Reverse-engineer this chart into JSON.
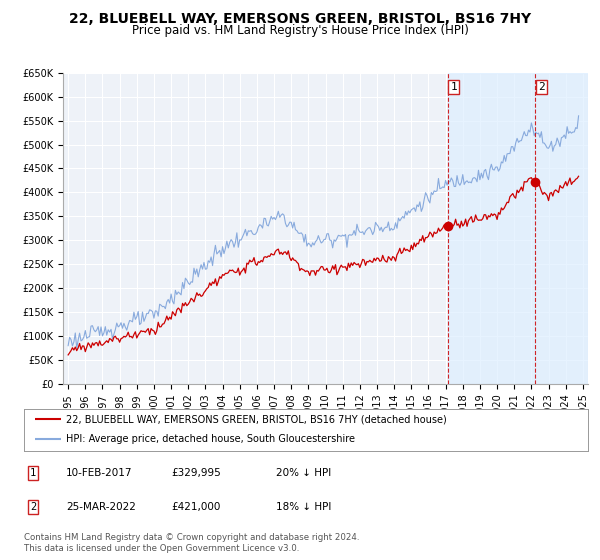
{
  "title": "22, BLUEBELL WAY, EMERSONS GREEN, BRISTOL, BS16 7HY",
  "subtitle": "Price paid vs. HM Land Registry's House Price Index (HPI)",
  "title_fontsize": 10,
  "subtitle_fontsize": 8.5,
  "ylabel_ticks": [
    "£0",
    "£50K",
    "£100K",
    "£150K",
    "£200K",
    "£250K",
    "£300K",
    "£350K",
    "£400K",
    "£450K",
    "£500K",
    "£550K",
    "£600K",
    "£650K"
  ],
  "ylabel_values": [
    0,
    50000,
    100000,
    150000,
    200000,
    250000,
    300000,
    350000,
    400000,
    450000,
    500000,
    550000,
    600000,
    650000
  ],
  "ylim": [
    0,
    650000
  ],
  "xlim_start": 1994.7,
  "xlim_end": 2025.3,
  "xticks": [
    1995,
    1996,
    1997,
    1998,
    1999,
    2000,
    2001,
    2002,
    2003,
    2004,
    2005,
    2006,
    2007,
    2008,
    2009,
    2010,
    2011,
    2012,
    2013,
    2014,
    2015,
    2016,
    2017,
    2018,
    2019,
    2020,
    2021,
    2022,
    2023,
    2024,
    2025
  ],
  "red_line_color": "#cc0000",
  "blue_line_color": "#88aadd",
  "shade_color": "#ddeeff",
  "marker1_date": 2017.12,
  "marker1_value": 329995,
  "marker2_date": 2022.23,
  "marker2_value": 421000,
  "vline1_date": 2017.12,
  "vline2_date": 2022.23,
  "annotation1": [
    "1",
    "10-FEB-2017",
    "£329,995",
    "20% ↓ HPI"
  ],
  "annotation2": [
    "2",
    "25-MAR-2022",
    "£421,000",
    "18% ↓ HPI"
  ],
  "legend_label_red": "22, BLUEBELL WAY, EMERSONS GREEN, BRISTOL, BS16 7HY (detached house)",
  "legend_label_blue": "HPI: Average price, detached house, South Gloucestershire",
  "footer": "Contains HM Land Registry data © Crown copyright and database right 2024.\nThis data is licensed under the Open Government Licence v3.0.",
  "bg_color": "#ffffff",
  "plot_bg_color": "#eef2f8",
  "grid_color": "#ffffff"
}
